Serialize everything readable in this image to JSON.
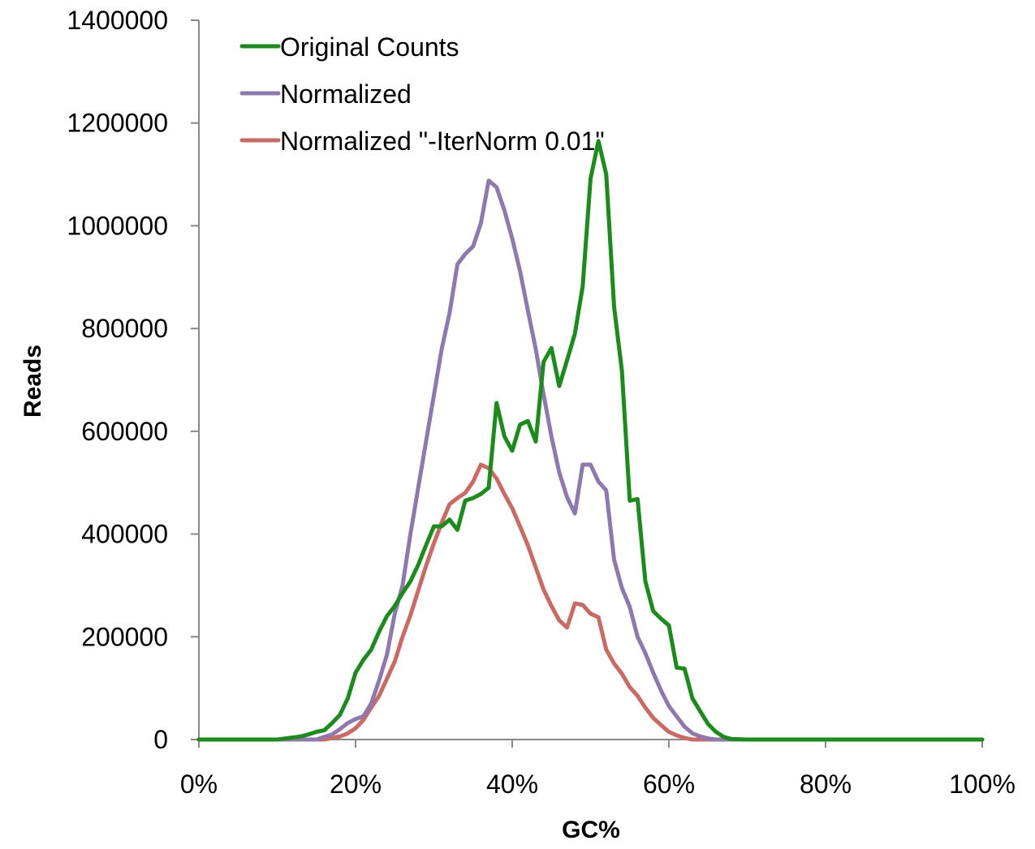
{
  "chart_data": {
    "type": "line",
    "title": "",
    "xlabel": "GC%",
    "ylabel": "Reads",
    "x_tick_labels": [
      "0%",
      "20%",
      "40%",
      "60%",
      "80%",
      "100%"
    ],
    "y_tick_labels": [
      "0",
      "200000",
      "400000",
      "600000",
      "800000",
      "1000000",
      "1200000",
      "1400000"
    ],
    "xlim": [
      0,
      100
    ],
    "ylim": [
      0,
      1400000
    ],
    "grid": false,
    "legend_position": "top-left",
    "series": [
      {
        "name": "Original Counts",
        "color": "#1a8c1a",
        "points": [
          [
            0,
            0
          ],
          [
            10,
            0
          ],
          [
            11,
            2000
          ],
          [
            12,
            4000
          ],
          [
            13,
            6000
          ],
          [
            14,
            10000
          ],
          [
            15,
            15000
          ],
          [
            16,
            18000
          ],
          [
            17,
            32000
          ],
          [
            18,
            48000
          ],
          [
            19,
            80000
          ],
          [
            20,
            130000
          ],
          [
            21,
            155000
          ],
          [
            22,
            175000
          ],
          [
            23,
            210000
          ],
          [
            24,
            240000
          ],
          [
            25,
            260000
          ],
          [
            26,
            285000
          ],
          [
            27,
            308000
          ],
          [
            28,
            340000
          ],
          [
            29,
            378000
          ],
          [
            30,
            415000
          ],
          [
            31,
            415000
          ],
          [
            32,
            428000
          ],
          [
            33,
            408000
          ],
          [
            34,
            465000
          ],
          [
            35,
            470000
          ],
          [
            36,
            478000
          ],
          [
            37,
            490000
          ],
          [
            38,
            655000
          ],
          [
            39,
            590000
          ],
          [
            40,
            562000
          ],
          [
            41,
            613000
          ],
          [
            42,
            620000
          ],
          [
            43,
            580000
          ],
          [
            44,
            735000
          ],
          [
            45,
            762000
          ],
          [
            46,
            688000
          ],
          [
            47,
            738000
          ],
          [
            48,
            790000
          ],
          [
            49,
            882000
          ],
          [
            50,
            1092000
          ],
          [
            51,
            1165000
          ],
          [
            52,
            1100000
          ],
          [
            53,
            842000
          ],
          [
            54,
            718000
          ],
          [
            55,
            465000
          ],
          [
            56,
            468000
          ],
          [
            57,
            308000
          ],
          [
            58,
            250000
          ],
          [
            59,
            235000
          ],
          [
            60,
            222000
          ],
          [
            61,
            140000
          ],
          [
            62,
            138000
          ],
          [
            63,
            80000
          ],
          [
            64,
            55000
          ],
          [
            65,
            30000
          ],
          [
            66,
            15000
          ],
          [
            67,
            5000
          ],
          [
            68,
            1000
          ],
          [
            70,
            0
          ],
          [
            100,
            0
          ]
        ]
      },
      {
        "name": "Normalized",
        "color": "#8e78b0",
        "points": [
          [
            0,
            0
          ],
          [
            15,
            0
          ],
          [
            16,
            5000
          ],
          [
            17,
            10000
          ],
          [
            18,
            20000
          ],
          [
            19,
            32000
          ],
          [
            20,
            40000
          ],
          [
            21,
            45000
          ],
          [
            22,
            70000
          ],
          [
            23,
            115000
          ],
          [
            24,
            165000
          ],
          [
            25,
            245000
          ],
          [
            26,
            300000
          ],
          [
            27,
            400000
          ],
          [
            28,
            490000
          ],
          [
            29,
            580000
          ],
          [
            30,
            670000
          ],
          [
            31,
            760000
          ],
          [
            32,
            830000
          ],
          [
            33,
            925000
          ],
          [
            34,
            945000
          ],
          [
            35,
            960000
          ],
          [
            36,
            1005000
          ],
          [
            37,
            1088000
          ],
          [
            38,
            1075000
          ],
          [
            39,
            1030000
          ],
          [
            40,
            975000
          ],
          [
            41,
            912000
          ],
          [
            42,
            835000
          ],
          [
            43,
            760000
          ],
          [
            44,
            672000
          ],
          [
            45,
            590000
          ],
          [
            46,
            520000
          ],
          [
            47,
            472000
          ],
          [
            48,
            440000
          ],
          [
            49,
            535000
          ],
          [
            50,
            535000
          ],
          [
            51,
            502000
          ],
          [
            52,
            485000
          ],
          [
            53,
            350000
          ],
          [
            54,
            295000
          ],
          [
            55,
            258000
          ],
          [
            56,
            200000
          ],
          [
            57,
            168000
          ],
          [
            58,
            130000
          ],
          [
            59,
            95000
          ],
          [
            60,
            65000
          ],
          [
            61,
            45000
          ],
          [
            62,
            25000
          ],
          [
            63,
            12000
          ],
          [
            64,
            6000
          ],
          [
            65,
            2000
          ],
          [
            66,
            0
          ],
          [
            100,
            0
          ]
        ]
      },
      {
        "name": "Normalized \"-IterNorm 0.01\"",
        "color": "#cc6a62",
        "points": [
          [
            0,
            0
          ],
          [
            16,
            0
          ],
          [
            17,
            3000
          ],
          [
            18,
            6000
          ],
          [
            19,
            12000
          ],
          [
            20,
            22000
          ],
          [
            21,
            38000
          ],
          [
            22,
            62000
          ],
          [
            23,
            85000
          ],
          [
            24,
            118000
          ],
          [
            25,
            152000
          ],
          [
            26,
            200000
          ],
          [
            27,
            242000
          ],
          [
            28,
            290000
          ],
          [
            29,
            338000
          ],
          [
            30,
            382000
          ],
          [
            31,
            422000
          ],
          [
            32,
            458000
          ],
          [
            33,
            470000
          ],
          [
            34,
            480000
          ],
          [
            35,
            502000
          ],
          [
            36,
            535000
          ],
          [
            37,
            528000
          ],
          [
            38,
            508000
          ],
          [
            39,
            478000
          ],
          [
            40,
            450000
          ],
          [
            41,
            415000
          ],
          [
            42,
            378000
          ],
          [
            43,
            335000
          ],
          [
            44,
            292000
          ],
          [
            45,
            260000
          ],
          [
            46,
            232000
          ],
          [
            47,
            218000
          ],
          [
            48,
            265000
          ],
          [
            49,
            262000
          ],
          [
            50,
            245000
          ],
          [
            51,
            238000
          ],
          [
            52,
            175000
          ],
          [
            53,
            148000
          ],
          [
            54,
            128000
          ],
          [
            55,
            102000
          ],
          [
            56,
            85000
          ],
          [
            57,
            62000
          ],
          [
            58,
            42000
          ],
          [
            59,
            28000
          ],
          [
            60,
            15000
          ],
          [
            61,
            8000
          ],
          [
            62,
            3000
          ],
          [
            63,
            0
          ],
          [
            100,
            0
          ]
        ]
      }
    ]
  }
}
